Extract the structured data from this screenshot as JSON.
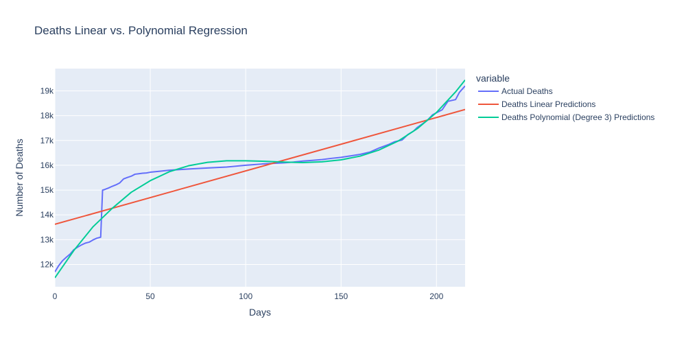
{
  "chart_data": {
    "type": "line",
    "title": "Deaths Linear vs. Polynomial Regression",
    "xlabel": "Days",
    "ylabel": "Number of Deaths",
    "xlim": [
      0,
      215
    ],
    "ylim": [
      11100,
      19900
    ],
    "x_ticks": [
      0,
      50,
      100,
      150,
      200
    ],
    "x_tick_labels": [
      "0",
      "50",
      "100",
      "150",
      "200"
    ],
    "y_ticks": [
      12000,
      13000,
      14000,
      15000,
      16000,
      17000,
      18000,
      19000
    ],
    "y_tick_labels": [
      "12k",
      "13k",
      "14k",
      "15k",
      "16k",
      "17k",
      "18k",
      "19k"
    ],
    "grid": true,
    "legend_title": "variable",
    "legend_position": "right",
    "background_color": "#E5ECF6",
    "grid_color": "#ffffff",
    "series": [
      {
        "name": "Actual Deaths",
        "color": "#636EFA",
        "x": [
          0,
          2,
          4,
          6,
          8,
          10,
          12,
          14,
          16,
          18,
          20,
          22,
          24,
          25,
          26,
          28,
          30,
          32,
          34,
          36,
          38,
          40,
          42,
          44,
          46,
          48,
          50,
          55,
          60,
          70,
          80,
          90,
          100,
          110,
          120,
          125,
          130,
          135,
          140,
          145,
          150,
          155,
          160,
          165,
          170,
          175,
          178,
          182,
          185,
          188,
          190,
          195,
          198,
          200,
          203,
          206,
          210,
          212,
          215
        ],
        "y": [
          11700,
          11950,
          12150,
          12290,
          12420,
          12600,
          12700,
          12790,
          12860,
          12900,
          12990,
          13060,
          13100,
          15000,
          15020,
          15080,
          15150,
          15210,
          15290,
          15450,
          15510,
          15560,
          15640,
          15660,
          15680,
          15690,
          15720,
          15760,
          15800,
          15850,
          15890,
          15930,
          16000,
          16060,
          16100,
          16130,
          16170,
          16200,
          16230,
          16280,
          16320,
          16380,
          16440,
          16530,
          16700,
          16840,
          16950,
          17020,
          17240,
          17380,
          17530,
          17800,
          18040,
          18120,
          18240,
          18580,
          18650,
          18940,
          19200
        ]
      },
      {
        "name": "Deaths Linear Predictions",
        "color": "#EF553B",
        "x": [
          0,
          215
        ],
        "y": [
          13620,
          18250
        ]
      },
      {
        "name": "Deaths Polynomial (Degree 3) Predictions",
        "color": "#00CC96",
        "x": [
          0,
          10,
          20,
          30,
          40,
          50,
          60,
          70,
          80,
          90,
          100,
          110,
          120,
          130,
          140,
          150,
          160,
          170,
          180,
          190,
          200,
          210,
          215
        ],
        "y": [
          11460,
          12570,
          13520,
          14260,
          14910,
          15380,
          15740,
          15980,
          16120,
          16180,
          16180,
          16160,
          16130,
          16110,
          16140,
          16220,
          16370,
          16620,
          16980,
          17480,
          18130,
          18960,
          19440
        ]
      }
    ]
  }
}
